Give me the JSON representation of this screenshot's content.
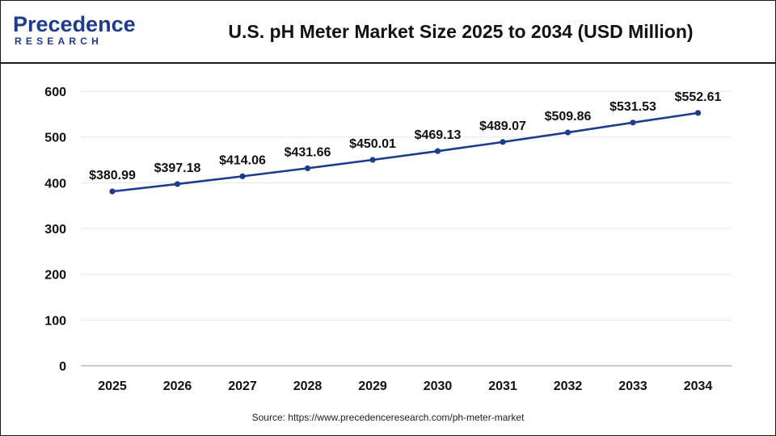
{
  "header": {
    "logo_word": "Precedence",
    "logo_sub": "RESEARCH",
    "title": "U.S. pH Meter Market Size 2025 to 2034 (USD Million)"
  },
  "source": "Source: https://www.precedenceresearch.com/ph-meter-market",
  "colors": {
    "line": "#1d3c8f",
    "brand": "#1d3c8f"
  },
  "chart_data": {
    "type": "line",
    "title": "U.S. pH Meter Market Size 2025 to 2034 (USD Million)",
    "categories": [
      "2025",
      "2026",
      "2027",
      "2028",
      "2029",
      "2030",
      "2031",
      "2032",
      "2033",
      "2034"
    ],
    "values": [
      380.99,
      397.18,
      414.06,
      431.66,
      450.01,
      469.13,
      489.07,
      509.86,
      531.53,
      552.61
    ],
    "data_labels": [
      "$380.99",
      "$397.18",
      "$414.06",
      "$431.66",
      "$450.01",
      "$469.13",
      "$489.07",
      "$509.86",
      "$531.53",
      "$552.61"
    ],
    "ylim": [
      0,
      600
    ],
    "yticks": [
      "0",
      "100",
      "200",
      "300",
      "400",
      "500",
      "600"
    ],
    "ytick_values": [
      0,
      100,
      200,
      300,
      400,
      500,
      600
    ],
    "grid": true,
    "legend": "none"
  }
}
